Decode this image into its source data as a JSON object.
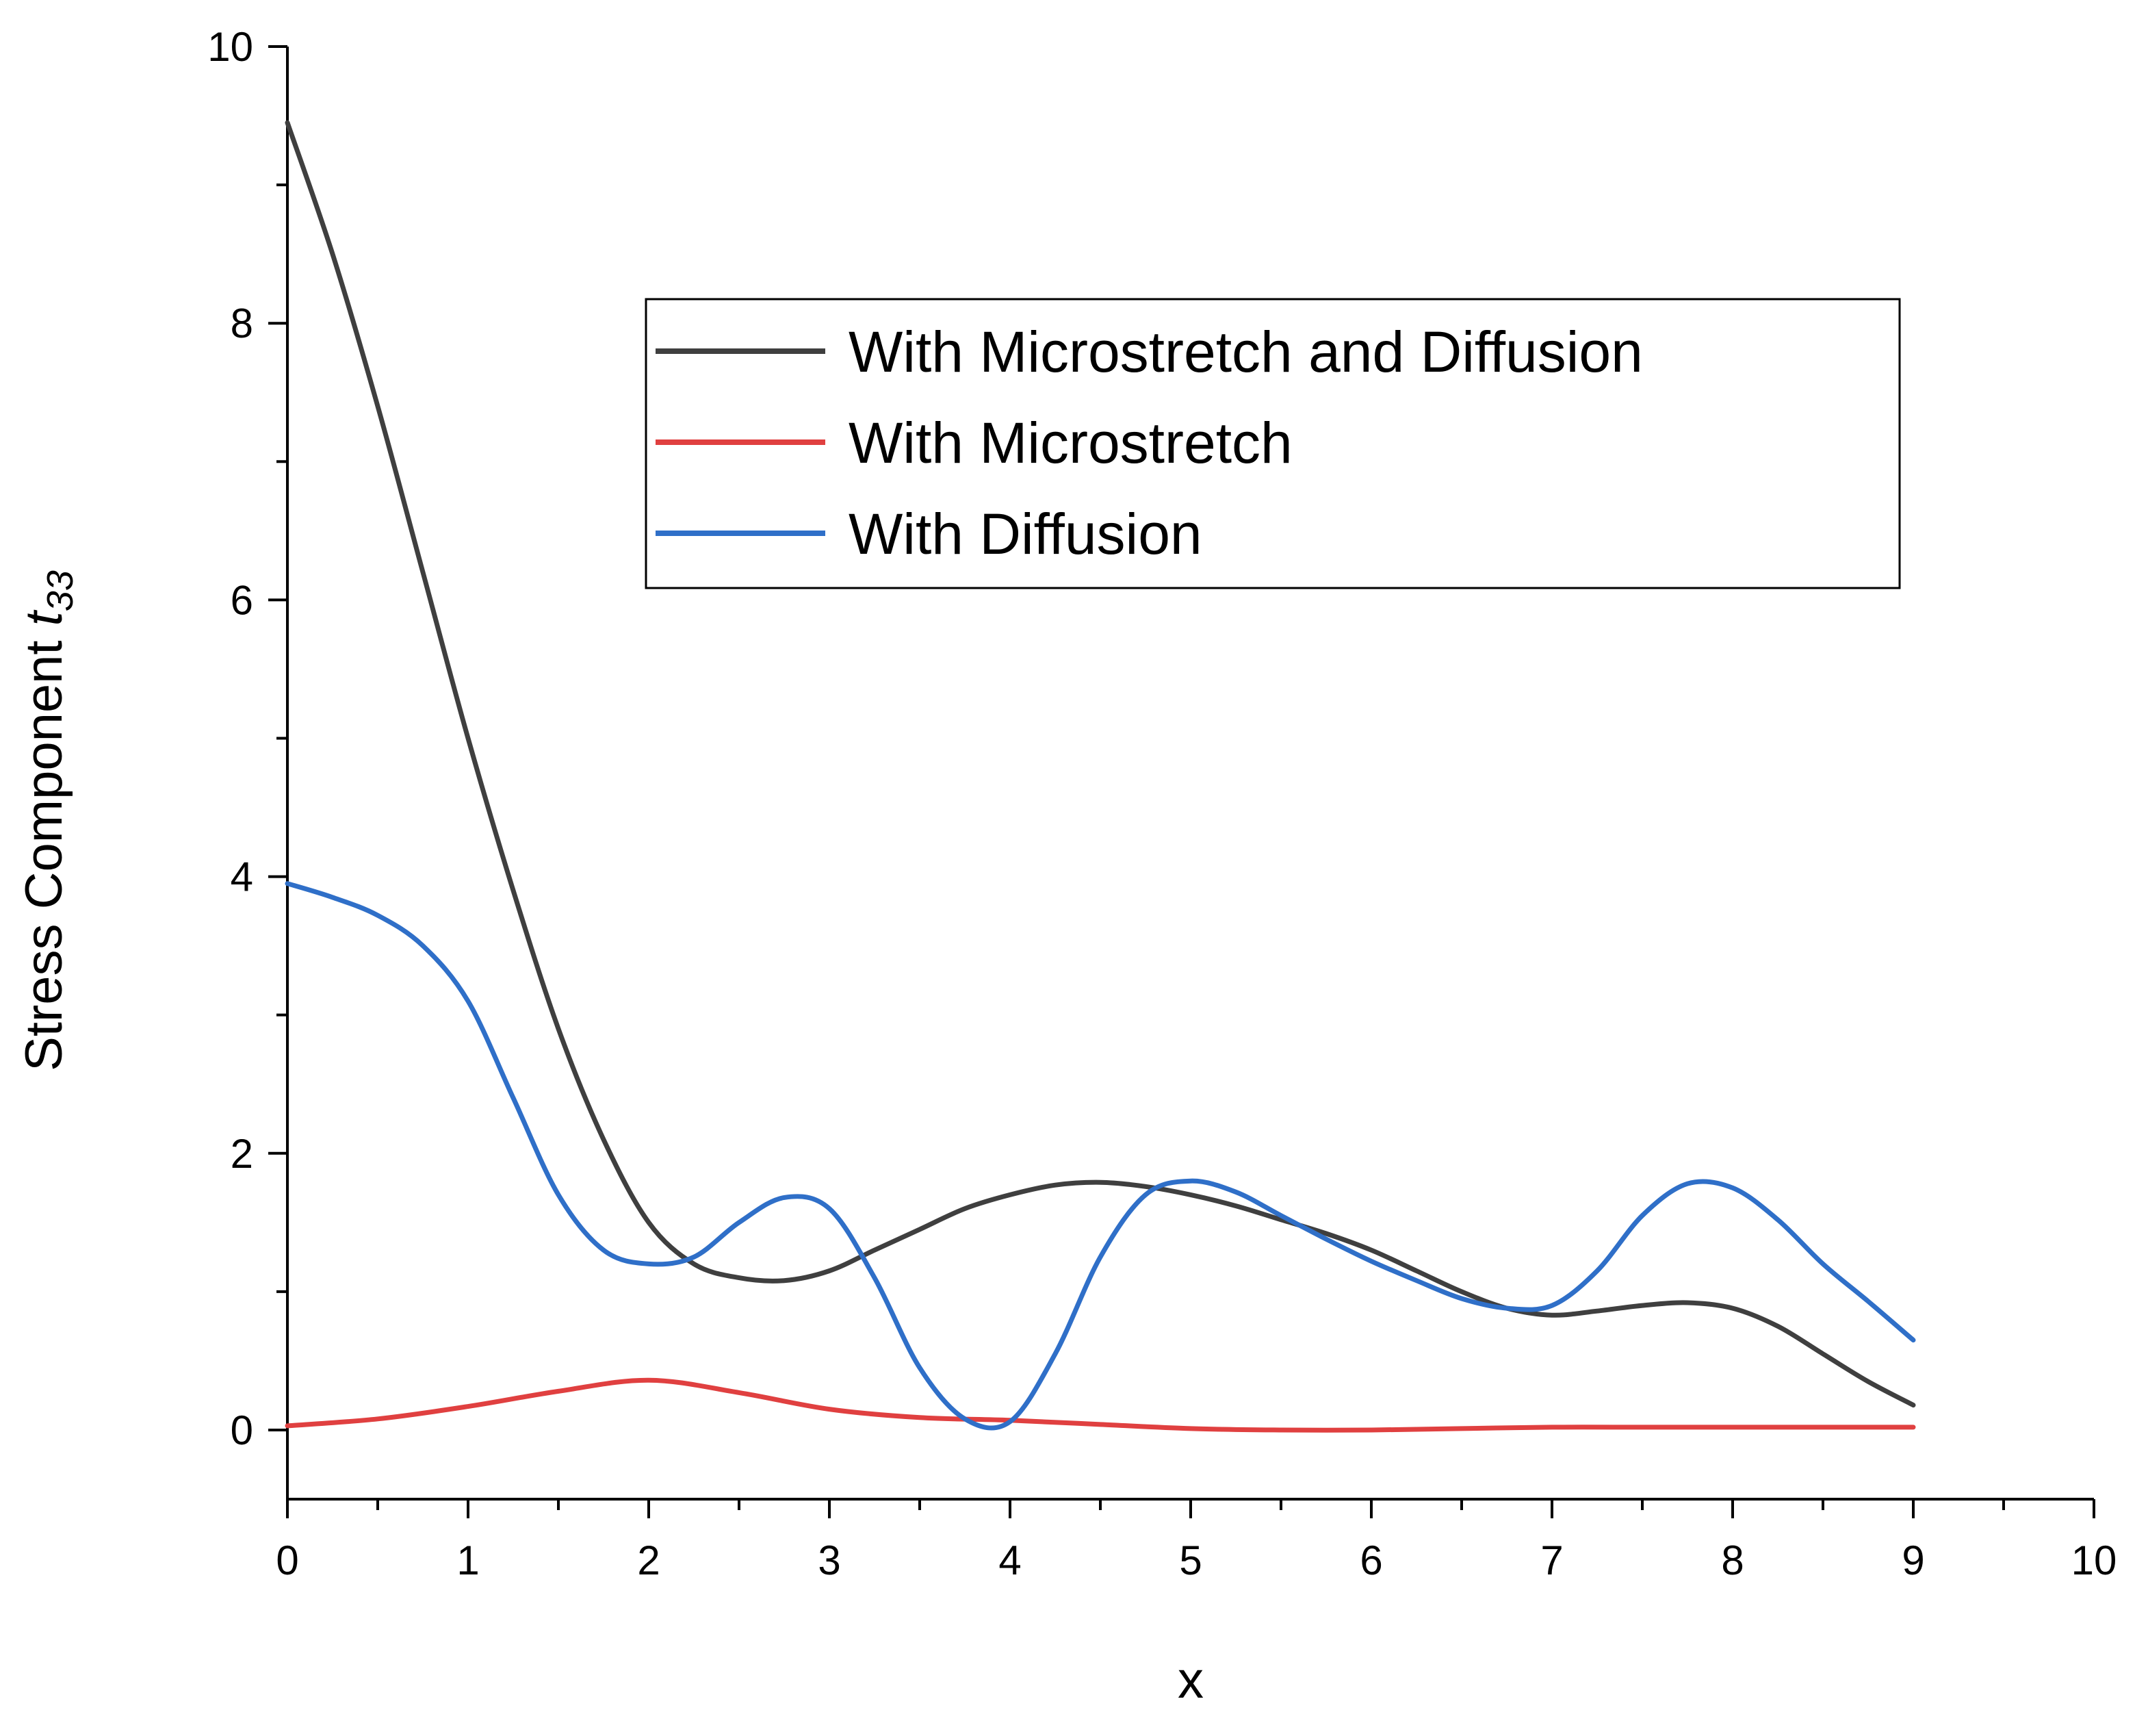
{
  "chart_data": {
    "type": "line",
    "xlabel": "x",
    "ylabel": {
      "prefix": "Stress Component ",
      "symbol": "t",
      "subscript": "33"
    },
    "xlim": [
      0,
      10
    ],
    "ylim": [
      -0.5,
      10
    ],
    "x_ticks": [
      0,
      1,
      2,
      3,
      4,
      5,
      6,
      7,
      8,
      9,
      10
    ],
    "y_ticks": [
      0,
      2,
      4,
      6,
      8,
      10
    ],
    "grid": false,
    "legend_position": "upper-right",
    "series": [
      {
        "name": "With Microstretch and Diffusion",
        "color": "#3f3f3f",
        "x": [
          0,
          0.25,
          0.5,
          0.75,
          1,
          1.25,
          1.5,
          1.75,
          2,
          2.25,
          2.5,
          2.75,
          3,
          3.25,
          3.5,
          3.75,
          4,
          4.25,
          4.5,
          4.75,
          5,
          5.25,
          5.5,
          5.75,
          6,
          6.25,
          6.5,
          6.75,
          7,
          7.25,
          7.5,
          7.75,
          8,
          8.25,
          8.5,
          8.75,
          9
        ],
        "y": [
          9.45,
          8.5,
          7.4,
          6.2,
          5.0,
          3.9,
          2.9,
          2.1,
          1.5,
          1.2,
          1.1,
          1.08,
          1.15,
          1.3,
          1.45,
          1.6,
          1.7,
          1.77,
          1.79,
          1.76,
          1.7,
          1.62,
          1.52,
          1.42,
          1.3,
          1.15,
          1.0,
          0.88,
          0.83,
          0.86,
          0.9,
          0.92,
          0.88,
          0.75,
          0.55,
          0.35,
          0.18
        ]
      },
      {
        "name": "With Microstretch",
        "color": "#e04040",
        "x": [
          0,
          0.5,
          1,
          1.5,
          2,
          2.5,
          3,
          3.5,
          4,
          4.5,
          5,
          5.5,
          6,
          6.5,
          7,
          7.5,
          8,
          8.5,
          9
        ],
        "y": [
          0.03,
          0.08,
          0.17,
          0.28,
          0.36,
          0.27,
          0.15,
          0.09,
          0.07,
          0.04,
          0.01,
          0.0,
          0.0,
          0.01,
          0.02,
          0.02,
          0.02,
          0.02,
          0.02
        ]
      },
      {
        "name": "With Diffusion",
        "color": "#2f6fc8",
        "x": [
          0,
          0.25,
          0.5,
          0.75,
          1,
          1.25,
          1.5,
          1.75,
          2,
          2.25,
          2.5,
          2.75,
          3,
          3.25,
          3.5,
          3.75,
          4,
          4.25,
          4.5,
          4.75,
          5,
          5.25,
          5.5,
          5.75,
          6,
          6.25,
          6.5,
          6.75,
          7,
          7.25,
          7.5,
          7.75,
          8,
          8.25,
          8.5,
          8.75,
          9
        ],
        "y": [
          3.95,
          3.85,
          3.72,
          3.5,
          3.1,
          2.4,
          1.7,
          1.3,
          1.2,
          1.25,
          1.5,
          1.68,
          1.6,
          1.1,
          0.45,
          0.08,
          0.06,
          0.55,
          1.25,
          1.7,
          1.8,
          1.72,
          1.55,
          1.38,
          1.22,
          1.08,
          0.95,
          0.88,
          0.9,
          1.15,
          1.55,
          1.78,
          1.75,
          1.52,
          1.2,
          0.93,
          0.65
        ]
      }
    ]
  }
}
